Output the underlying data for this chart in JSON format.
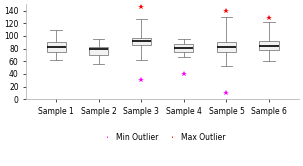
{
  "samples": [
    {
      "label": "Sample 1",
      "whisker_low": 62,
      "q1": 75,
      "median": 83,
      "q3": 90,
      "whisker_high": 110,
      "min_outlier": null,
      "max_outlier": null
    },
    {
      "label": "Sample 2",
      "whisker_low": 55,
      "q1": 70,
      "median": 80,
      "q3": 82,
      "whisker_high": 95,
      "min_outlier": null,
      "max_outlier": null
    },
    {
      "label": "Sample 3",
      "whisker_low": 62,
      "q1": 85,
      "median": 92,
      "q3": 97,
      "whisker_high": 127,
      "min_outlier": 30,
      "max_outlier": 145
    },
    {
      "label": "Sample 4",
      "whisker_low": 67,
      "q1": 74,
      "median": 81,
      "q3": 87,
      "whisker_high": 95,
      "min_outlier": 40,
      "max_outlier": null
    },
    {
      "label": "Sample 5",
      "whisker_low": 52,
      "q1": 75,
      "median": 83,
      "q3": 90,
      "whisker_high": 130,
      "min_outlier": 10,
      "max_outlier": 140
    },
    {
      "label": "Sample 6",
      "whisker_low": 60,
      "q1": 78,
      "median": 84,
      "q3": 92,
      "whisker_high": 122,
      "min_outlier": null,
      "max_outlier": 128
    }
  ],
  "ylim": [
    0,
    150
  ],
  "yticks": [
    0,
    20,
    40,
    60,
    80,
    100,
    120,
    140,
    160
  ],
  "box_facecolor": "#f2f2f2",
  "box_edgecolor": "#808080",
  "median_color": "#000000",
  "whisker_color": "#808080",
  "min_outlier_color": "#ff00ff",
  "max_outlier_color": "#ff0000",
  "background_color": "#ffffff",
  "legend_fontsize": 5.5,
  "tick_fontsize": 5.5,
  "box_width": 0.45
}
